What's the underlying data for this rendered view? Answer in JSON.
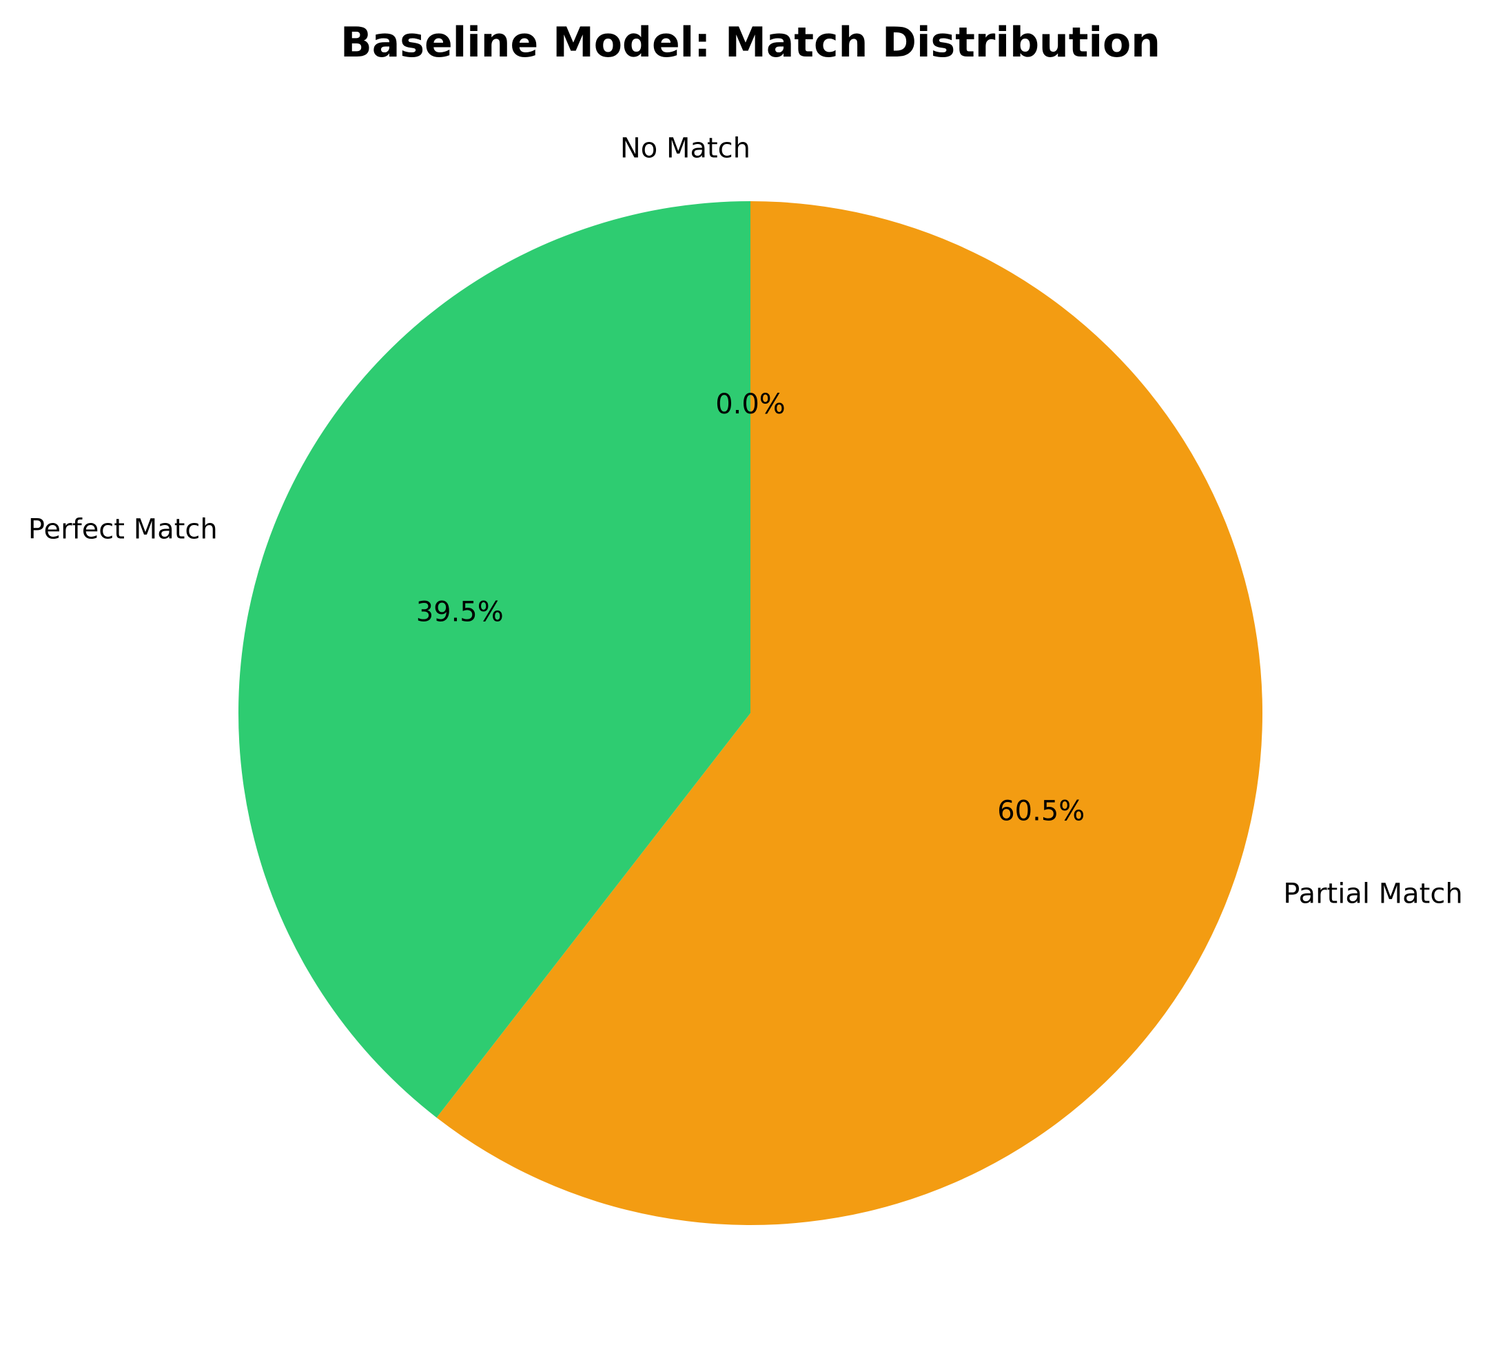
{
  "chart_data": {
    "type": "pie",
    "title": "Baseline Model: Match Distribution",
    "slices": [
      {
        "label": "No Match",
        "value": 0.0,
        "pct_label": "0.0%",
        "color": "#e74c3c"
      },
      {
        "label": "Partial Match",
        "value": 60.5,
        "pct_label": "60.5%",
        "color": "#f39c12"
      },
      {
        "label": "Perfect Match",
        "value": 39.5,
        "pct_label": "39.5%",
        "color": "#2ecc71"
      }
    ],
    "start": "top",
    "direction": "clockwise"
  }
}
